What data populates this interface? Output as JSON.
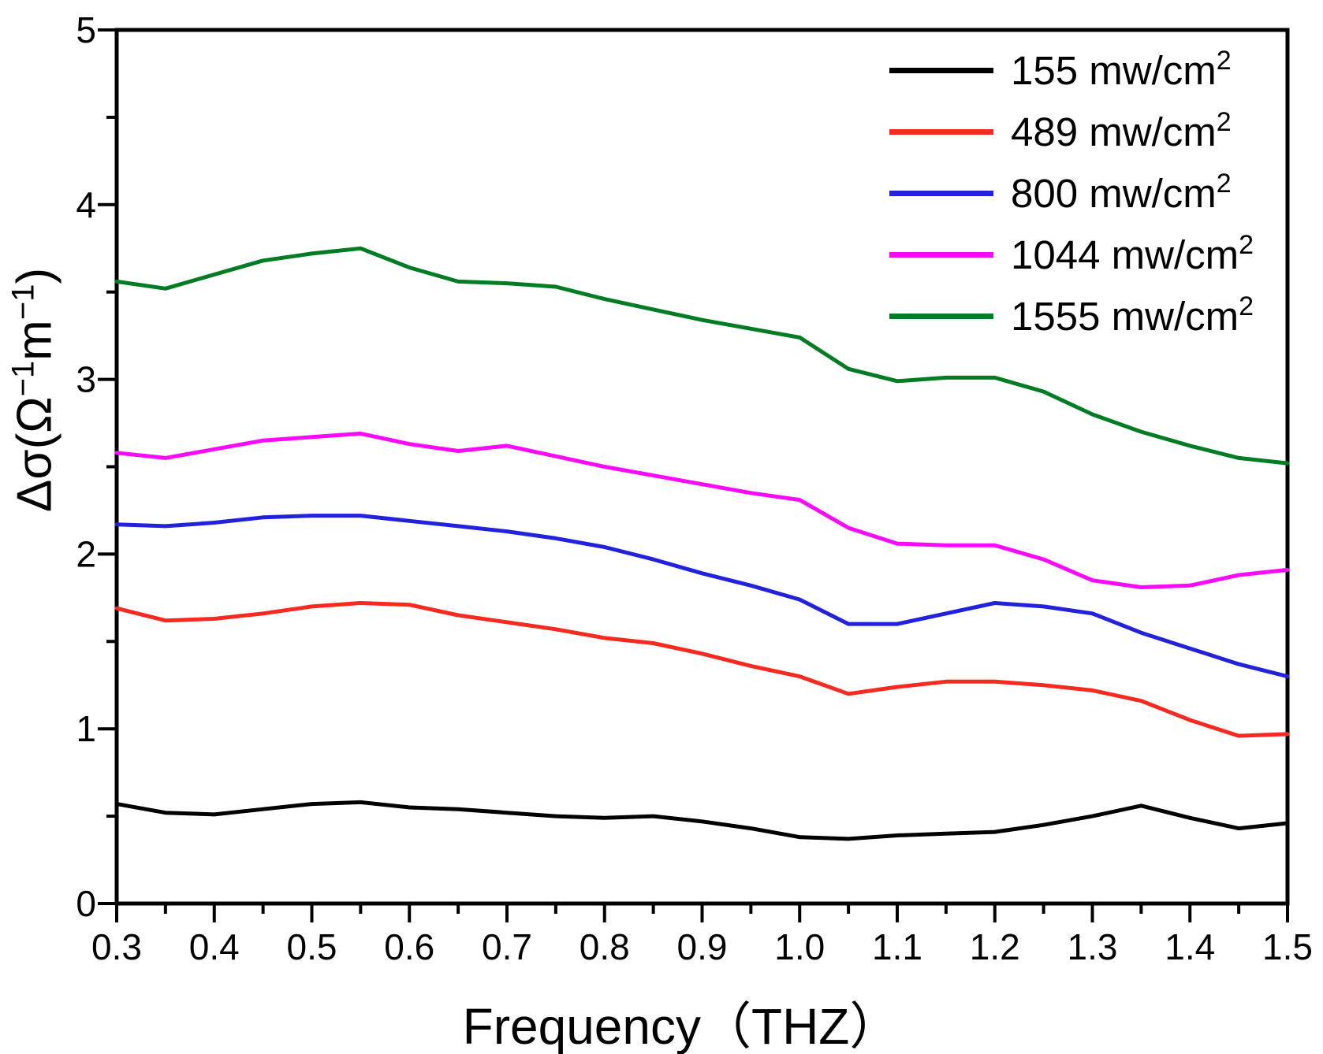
{
  "figure": {
    "background": "#ffffff",
    "axis_color": "#000000"
  },
  "chart_data": {
    "type": "line",
    "title": "",
    "xlabel": "Frequency（THZ）",
    "ylabel": "Δσ(Ω−1m−1)",
    "ylabel_parts": {
      "p1": "Δσ(Ω",
      "s1": "−1",
      "p2": "m",
      "s2": "−1",
      "p3": ")"
    },
    "xlim": [
      0.3,
      1.5
    ],
    "ylim": [
      0,
      5
    ],
    "xticks": [
      "0.3",
      "0.4",
      "0.5",
      "0.6",
      "0.7",
      "0.8",
      "0.9",
      "1.0",
      "1.1",
      "1.2",
      "1.3",
      "1.4",
      "1.5"
    ],
    "yticks": [
      "0",
      "1",
      "2",
      "3",
      "4",
      "5"
    ],
    "x_minor_step": 0.05,
    "y_minor_step": 0.5,
    "grid": false,
    "legend_position": "top-right",
    "x": [
      0.3,
      0.35,
      0.4,
      0.45,
      0.5,
      0.55,
      0.6,
      0.65,
      0.7,
      0.75,
      0.8,
      0.85,
      0.9,
      0.95,
      1.0,
      1.05,
      1.1,
      1.15,
      1.2,
      1.25,
      1.3,
      1.35,
      1.4,
      1.45,
      1.5
    ],
    "series": [
      {
        "name": "155 mw/cm²",
        "label_main": "155 mw/cm",
        "label_sup": "2",
        "color": "#000000",
        "values": [
          0.57,
          0.52,
          0.51,
          0.54,
          0.57,
          0.58,
          0.55,
          0.54,
          0.52,
          0.5,
          0.49,
          0.5,
          0.47,
          0.43,
          0.38,
          0.37,
          0.39,
          0.4,
          0.41,
          0.45,
          0.5,
          0.56,
          0.49,
          0.43,
          0.46
        ]
      },
      {
        "name": "489 mw/cm²",
        "label_main": "489 mw/cm",
        "label_sup": "2",
        "color": "#f62a1e",
        "values": [
          1.69,
          1.62,
          1.63,
          1.66,
          1.7,
          1.72,
          1.71,
          1.65,
          1.61,
          1.57,
          1.52,
          1.49,
          1.43,
          1.36,
          1.3,
          1.2,
          1.24,
          1.27,
          1.27,
          1.25,
          1.22,
          1.16,
          1.05,
          0.96,
          0.97
        ]
      },
      {
        "name": "800 mw/cm²",
        "label_main": "800 mw/cm",
        "label_sup": "2",
        "color": "#2222dd",
        "values": [
          2.17,
          2.16,
          2.18,
          2.21,
          2.22,
          2.22,
          2.19,
          2.16,
          2.13,
          2.09,
          2.04,
          1.97,
          1.89,
          1.82,
          1.74,
          1.6,
          1.6,
          1.66,
          1.72,
          1.7,
          1.66,
          1.55,
          1.46,
          1.37,
          1.3
        ]
      },
      {
        "name": "1044 mw/cm²",
        "label_main": "1044 mw/cm",
        "label_sup": "2",
        "color": "#fa0afa",
        "values": [
          2.58,
          2.55,
          2.6,
          2.65,
          2.67,
          2.69,
          2.63,
          2.59,
          2.62,
          2.56,
          2.5,
          2.45,
          2.4,
          2.35,
          2.31,
          2.15,
          2.06,
          2.05,
          2.05,
          1.97,
          1.85,
          1.81,
          1.82,
          1.88,
          1.91
        ]
      },
      {
        "name": "1555 mw/cm²",
        "label_main": "1555 mw/cm",
        "label_sup": "2",
        "color": "#007d23",
        "values": [
          3.56,
          3.52,
          3.6,
          3.68,
          3.72,
          3.75,
          3.64,
          3.56,
          3.55,
          3.53,
          3.46,
          3.4,
          3.34,
          3.29,
          3.24,
          3.06,
          2.99,
          3.01,
          3.01,
          2.93,
          2.8,
          2.7,
          2.62,
          2.55,
          2.52
        ]
      }
    ]
  }
}
